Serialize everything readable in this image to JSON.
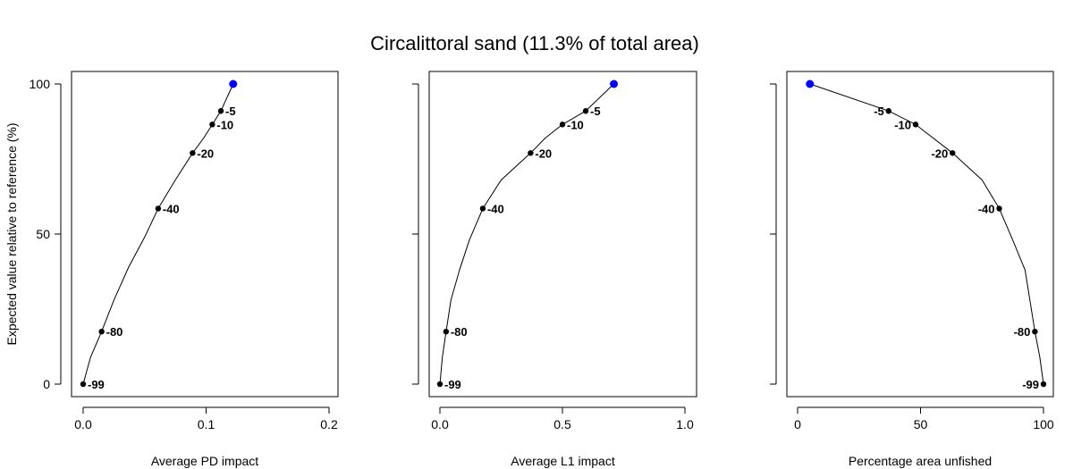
{
  "title": "Circalittoral sand (11.3% of total area)",
  "chart_data": [
    {
      "type": "line",
      "xlabel": "Average PD impact",
      "ylabel": "Expected value relative to reference (%)",
      "xlim": [
        0,
        0.2
      ],
      "ylim": [
        0,
        100
      ],
      "xticks": [
        "0.0",
        "0.1",
        "0.2"
      ],
      "xtick_values": [
        0,
        0.1,
        0.2
      ],
      "yticks": [
        "0",
        "50",
        "100"
      ],
      "ytick_values": [
        0,
        50,
        100
      ],
      "line_x": [
        0.0,
        0.006,
        0.015,
        0.025,
        0.037,
        0.05,
        0.061,
        0.075,
        0.089,
        0.098,
        0.105,
        0.112,
        0.122
      ],
      "line_y": [
        0,
        9,
        17.5,
        28,
        39,
        49,
        58.5,
        68,
        77,
        82,
        86.5,
        91,
        100
      ],
      "points": [
        {
          "x": 0.122,
          "y": 100,
          "label": "",
          "highlight": true
        },
        {
          "x": 0.112,
          "y": 91,
          "label": "-5",
          "side": "right"
        },
        {
          "x": 0.105,
          "y": 86.5,
          "label": "-10",
          "side": "right"
        },
        {
          "x": 0.089,
          "y": 77,
          "label": "-20",
          "side": "right"
        },
        {
          "x": 0.061,
          "y": 58.5,
          "label": "-40",
          "side": "right"
        },
        {
          "x": 0.015,
          "y": 17.5,
          "label": "-80",
          "side": "right"
        },
        {
          "x": 0.0,
          "y": 0,
          "label": "-99",
          "side": "right"
        }
      ]
    },
    {
      "type": "line",
      "xlabel": "Average L1 impact",
      "ylabel": "",
      "xlim": [
        0,
        1
      ],
      "ylim": [
        0,
        100
      ],
      "xticks": [
        "0.0",
        "0.5",
        "1.0"
      ],
      "xtick_values": [
        0,
        0.5,
        1
      ],
      "yticks": [],
      "ytick_values": [
        0,
        50,
        100
      ],
      "line_x": [
        0.0,
        0.01,
        0.025,
        0.045,
        0.08,
        0.12,
        0.175,
        0.25,
        0.37,
        0.43,
        0.5,
        0.595,
        0.71
      ],
      "line_y": [
        0,
        9,
        17.5,
        28,
        38,
        48,
        58.5,
        68,
        77,
        82,
        86.5,
        91,
        100
      ],
      "points": [
        {
          "x": 0.71,
          "y": 100,
          "label": "",
          "highlight": true
        },
        {
          "x": 0.595,
          "y": 91,
          "label": "-5",
          "side": "right"
        },
        {
          "x": 0.5,
          "y": 86.5,
          "label": "-10",
          "side": "right"
        },
        {
          "x": 0.37,
          "y": 77,
          "label": "-20",
          "side": "right"
        },
        {
          "x": 0.175,
          "y": 58.5,
          "label": "-40",
          "side": "right"
        },
        {
          "x": 0.025,
          "y": 17.5,
          "label": "-80",
          "side": "right"
        },
        {
          "x": 0.0,
          "y": 0,
          "label": "-99",
          "side": "right"
        }
      ]
    },
    {
      "type": "line",
      "xlabel": "Percentage area unfished",
      "ylabel": "",
      "xlim": [
        0,
        100
      ],
      "ylim": [
        0,
        100
      ],
      "xticks": [
        "0",
        "50",
        "100"
      ],
      "xtick_values": [
        0,
        50,
        100
      ],
      "yticks": [],
      "ytick_values": [
        0,
        50,
        100
      ],
      "line_x": [
        5,
        37,
        48,
        63,
        75,
        82,
        87.5,
        92.5,
        96.5,
        98.5,
        100
      ],
      "line_y": [
        100,
        91,
        86.5,
        77,
        68,
        58.5,
        48,
        38,
        17.5,
        9,
        0
      ],
      "points": [
        {
          "x": 5,
          "y": 100,
          "label": "",
          "highlight": true
        },
        {
          "x": 37,
          "y": 91,
          "label": "-5",
          "side": "left"
        },
        {
          "x": 48,
          "y": 86.5,
          "label": "-10",
          "side": "left"
        },
        {
          "x": 63,
          "y": 77,
          "label": "-20",
          "side": "left"
        },
        {
          "x": 82,
          "y": 58.5,
          "label": "-40",
          "side": "left"
        },
        {
          "x": 96.5,
          "y": 17.5,
          "label": "-80",
          "side": "left"
        },
        {
          "x": 100,
          "y": 0,
          "label": "-99",
          "side": "left"
        }
      ]
    }
  ],
  "colors": {
    "highlight": "#0000ff",
    "point": "#000000",
    "line": "#000000",
    "frame": "#000000"
  }
}
